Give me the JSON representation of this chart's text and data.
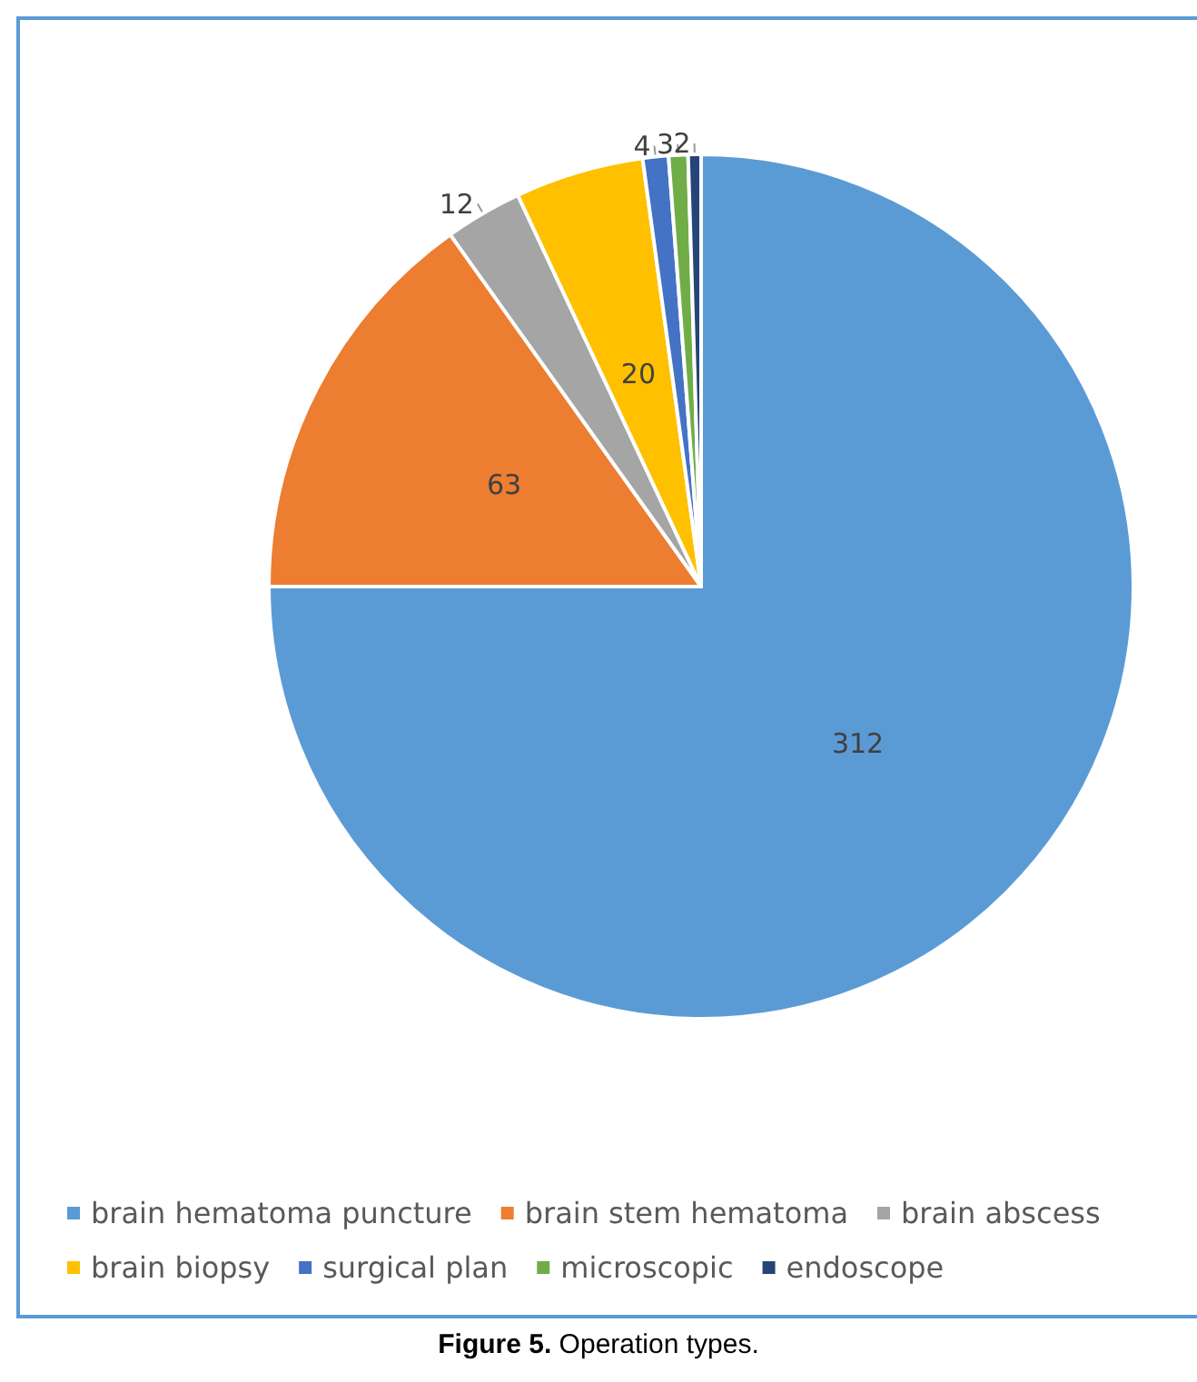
{
  "chart_data": {
    "type": "pie",
    "title": "Figure 5. Operation types.",
    "categories": [
      "brain hematoma puncture",
      "brain stem hematoma",
      "brain abscess",
      "brain biopsy",
      "surgical plan",
      "microscopic",
      "endoscope"
    ],
    "values": [
      312,
      63,
      12,
      20,
      4,
      3,
      2
    ],
    "colors": [
      "#5b9bd5",
      "#ed7d31",
      "#a5a5a5",
      "#ffc000",
      "#4472c4",
      "#70ad47",
      "#264478"
    ],
    "data_labels": true,
    "legend": "bottom"
  }
}
